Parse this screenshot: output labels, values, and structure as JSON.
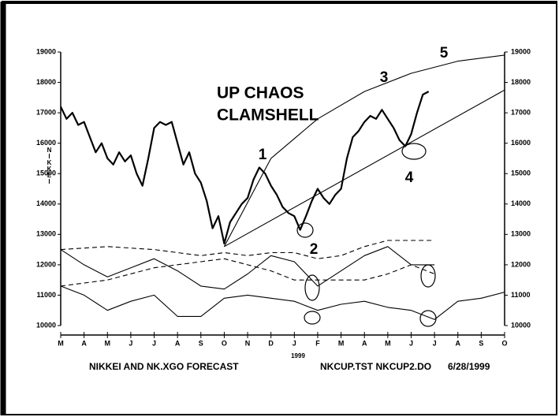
{
  "chart_data": {
    "type": "line",
    "y_label": "NIKKEI",
    "annotations": [
      "UP CHAOS",
      "CLAMSHELL",
      "1",
      "2",
      "3",
      "4",
      "5",
      "1999"
    ],
    "footer": [
      "NIKKEI AND NK.XGO FORECAST",
      "NKCUP.TST NKCUP2.DO",
      "6/28/1999"
    ],
    "xlim": [
      0,
      19
    ],
    "xticks": [
      {
        "value": 0,
        "label": "M"
      },
      {
        "value": 1,
        "label": "A"
      },
      {
        "value": 2,
        "label": "M"
      },
      {
        "value": 3,
        "label": "J"
      },
      {
        "value": 4,
        "label": "J"
      },
      {
        "value": 5,
        "label": "A"
      },
      {
        "value": 6,
        "label": "S"
      },
      {
        "value": 7,
        "label": "O"
      },
      {
        "value": 8,
        "label": "N"
      },
      {
        "value": 9,
        "label": "D"
      },
      {
        "value": 10,
        "label": "J"
      },
      {
        "value": 11,
        "label": "F"
      },
      {
        "value": 12,
        "label": "M"
      },
      {
        "value": 13,
        "label": "A"
      },
      {
        "value": 14,
        "label": "M"
      },
      {
        "value": 15,
        "label": "J"
      },
      {
        "value": 16,
        "label": "J"
      },
      {
        "value": 17,
        "label": "A"
      },
      {
        "value": 18,
        "label": "S"
      },
      {
        "value": 19,
        "label": "O"
      }
    ],
    "ylim": [
      10000,
      19000
    ],
    "yticks": [
      10000,
      11000,
      12000,
      13000,
      14000,
      15000,
      16000,
      17000,
      18000,
      19000
    ],
    "series": [
      {
        "color": "#000000",
        "dashed": false,
        "x": [
          0,
          0.25,
          0.5,
          0.75,
          1,
          1.25,
          1.5,
          1.75,
          2,
          2.25,
          2.5,
          2.75,
          3,
          3.25,
          3.5,
          3.75,
          4,
          4.25,
          4.5,
          4.75,
          5,
          5.25,
          5.5,
          5.75,
          6,
          6.25,
          6.5,
          6.75,
          7,
          7.25,
          7.5,
          7.75,
          8,
          8.25,
          8.5,
          8.75,
          9,
          9.25,
          9.5,
          9.75,
          10,
          10.25,
          10.5,
          10.75,
          11,
          11.25,
          11.5,
          11.75,
          12,
          12.25,
          12.5,
          12.75,
          13,
          13.25,
          13.5,
          13.75,
          14,
          14.25,
          14.5,
          14.75,
          15,
          15.25,
          15.5,
          15.75
        ],
        "values": [
          17200,
          16800,
          17000,
          16600,
          16700,
          16200,
          15700,
          16000,
          15500,
          15300,
          15700,
          15400,
          15600,
          15000,
          14600,
          15500,
          16500,
          16700,
          16600,
          16700,
          16000,
          15300,
          15700,
          15000,
          14700,
          14100,
          13200,
          13600,
          12700,
          13400,
          13700,
          14000,
          14200,
          14800,
          15200,
          15000,
          14600,
          14300,
          13900,
          13700,
          13600,
          13150,
          13600,
          14100,
          14500,
          14200,
          14000,
          14300,
          14500,
          15500,
          16200,
          16400,
          16700,
          16900,
          16800,
          17100,
          16800,
          16500,
          16100,
          15900,
          16300,
          17000,
          17600,
          17700
        ]
      },
      {
        "color": "#000000",
        "dashed": true,
        "x": [
          0,
          2,
          4,
          6,
          7,
          8,
          9,
          10,
          11,
          12,
          13,
          14,
          15,
          16
        ],
        "values": [
          12500,
          12600,
          12500,
          12300,
          12400,
          12300,
          12400,
          12400,
          12200,
          12300,
          12600,
          12800,
          12800,
          12800
        ]
      },
      {
        "color": "#000000",
        "dashed": true,
        "x": [
          0,
          2,
          4,
          6,
          7,
          8,
          9,
          10,
          11,
          12,
          13,
          14,
          15,
          16
        ],
        "values": [
          11300,
          11500,
          11900,
          12100,
          12200,
          12000,
          11800,
          11500,
          11500,
          11500,
          11500,
          11700,
          12000,
          11700
        ]
      },
      {
        "color": "#000000",
        "dashed": false,
        "x": [
          0,
          1,
          2,
          3,
          4,
          5,
          6,
          7,
          8,
          9,
          10,
          11,
          12,
          13,
          14,
          15,
          16
        ],
        "values": [
          12500,
          12000,
          11600,
          11900,
          12200,
          11800,
          11300,
          11200,
          11700,
          12300,
          12100,
          11300,
          11800,
          12300,
          12600,
          12000,
          12000
        ]
      },
      {
        "color": "#000000",
        "dashed": false,
        "x": [
          0,
          1,
          2,
          3,
          4,
          5,
          6,
          7,
          8,
          9,
          10,
          11,
          12,
          13,
          14,
          15,
          16,
          17,
          18,
          19
        ],
        "values": [
          11300,
          11000,
          10500,
          10800,
          11000,
          10300,
          10300,
          10900,
          11000,
          10900,
          10800,
          10500,
          10700,
          10800,
          10600,
          10500,
          10200,
          10800,
          10900,
          11100
        ]
      },
      {
        "color": "#000000",
        "dashed": false,
        "x": [
          7,
          19
        ],
        "values": [
          12600,
          17750
        ]
      },
      {
        "color": "#000000",
        "dashed": false,
        "x": [
          7,
          9,
          11,
          13,
          15,
          17,
          19
        ],
        "values": [
          12600,
          15500,
          16800,
          17700,
          18300,
          18700,
          18900
        ]
      }
    ]
  }
}
